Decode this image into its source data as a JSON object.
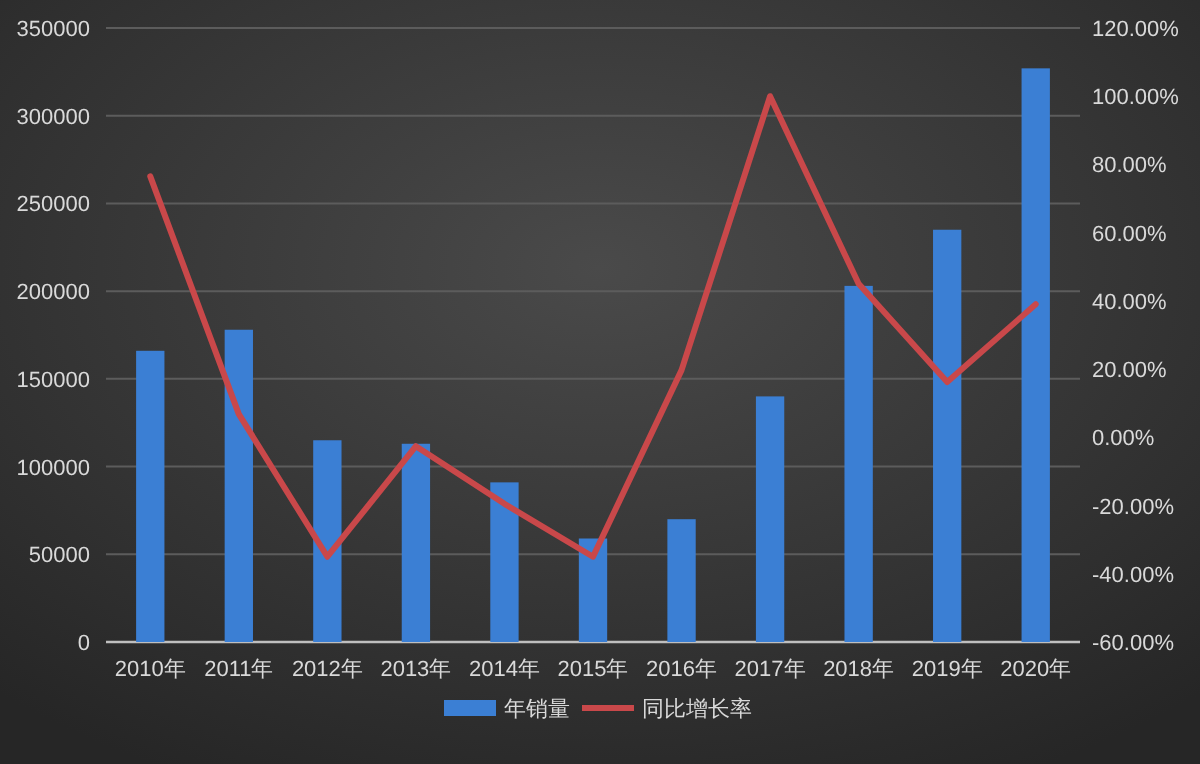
{
  "chart_data": {
    "type": "bar",
    "categories": [
      "2010年",
      "2011年",
      "2012年",
      "2013年",
      "2014年",
      "2015年",
      "2016年",
      "2017年",
      "2018年",
      "2019年",
      "2020年"
    ],
    "series": [
      {
        "name": "年销量",
        "color": "#3b7fd4",
        "values": [
          166000,
          178000,
          115000,
          113000,
          91000,
          59000,
          70000,
          140000,
          203000,
          235000,
          327000
        ]
      },
      {
        "name": "同比增长率",
        "type": "line",
        "axis": "y2",
        "color": "#c9484a",
        "values": [
          76.5,
          6.8,
          -35,
          -2.6,
          -19.5,
          -35,
          19.7,
          100,
          45,
          16.2,
          39
        ]
      }
    ],
    "ylim": [
      0,
      350000
    ],
    "yticks": [
      0,
      50000,
      100000,
      150000,
      200000,
      250000,
      300000,
      350000
    ],
    "y2lim": [
      -60,
      120
    ],
    "y2ticks": [
      {
        "value": -60,
        "label": "-60.00%"
      },
      {
        "value": -40,
        "label": "-40.00%"
      },
      {
        "value": -20,
        "label": "-20.00%"
      },
      {
        "value": 0,
        "label": "0.00%"
      },
      {
        "value": 20,
        "label": "20.00%"
      },
      {
        "value": 40,
        "label": "40.00%"
      },
      {
        "value": 60,
        "label": "60.00%"
      },
      {
        "value": 80,
        "label": "80.00%"
      },
      {
        "value": 100,
        "label": "100.00%"
      },
      {
        "value": 120,
        "label": "120.00%"
      }
    ],
    "grid": "y",
    "legend": "bottom",
    "marker": "none",
    "line_style": "solid"
  }
}
